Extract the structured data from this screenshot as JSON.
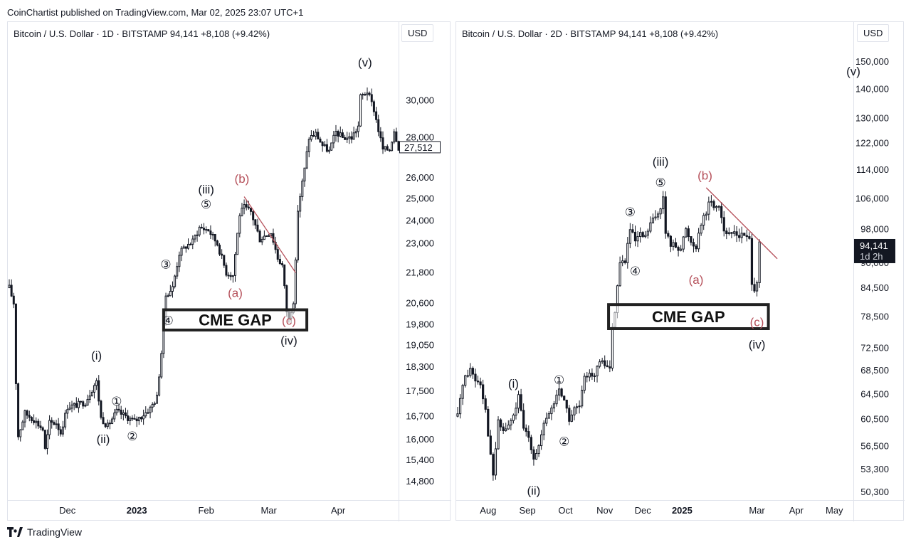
{
  "publish_line": "CoinChartist published on TradingView.com, Mar 02, 2025 23:07 UTC+1",
  "footer_brand": "TradingView",
  "colors": {
    "candle": "#131722",
    "annotation_red": "#b5505a",
    "trendline": "#b5505a",
    "gap_box": "#222222",
    "grid": "#e0e3eb"
  },
  "chart_data": [
    {
      "type": "candlestick",
      "header": "Bitcoin / U.S. Dollar · 1D · BITSTAMP  94,141  +8,108 (+9.42%)",
      "currency": "USD",
      "y_scale": "log",
      "ylim": [
        14300,
        33000
      ],
      "xlim": [
        "2022-11-05",
        "2023-04-28"
      ],
      "y_ticks": [
        "30,000",
        "28,000",
        "26,000",
        "25,000",
        "24,000",
        "23,000",
        "21,800",
        "20,600",
        "19,800",
        "19,050",
        "18,300",
        "17,500",
        "16,700",
        "16,000",
        "15,400",
        "14,800"
      ],
      "x_ticks": [
        {
          "label": "Dec",
          "date": "2022-12-01"
        },
        {
          "label": "2023",
          "date": "2023-01-01",
          "bold": true
        },
        {
          "label": "Feb",
          "date": "2023-02-01"
        },
        {
          "label": "Mar",
          "date": "2023-03-01"
        },
        {
          "label": "Apr",
          "date": "2023-04-01"
        }
      ],
      "last_price": "27,512",
      "last_price_value": 27512,
      "path": [
        [
          "2022-11-05",
          21200
        ],
        [
          "2022-11-07",
          20600
        ],
        [
          "2022-11-08",
          17800
        ],
        [
          "2022-11-09",
          16100
        ],
        [
          "2022-11-12",
          16800
        ],
        [
          "2022-11-16",
          16600
        ],
        [
          "2022-11-20",
          16300
        ],
        [
          "2022-11-21",
          15700
        ],
        [
          "2022-11-23",
          16500
        ],
        [
          "2022-11-26",
          16500
        ],
        [
          "2022-11-28",
          16200
        ],
        [
          "2022-12-01",
          17000
        ],
        [
          "2022-12-05",
          17050
        ],
        [
          "2022-12-09",
          17150
        ],
        [
          "2022-12-13",
          17700
        ],
        [
          "2022-12-14",
          17800
        ],
        [
          "2022-12-16",
          16650
        ],
        [
          "2022-12-19",
          16400
        ],
        [
          "2022-12-23",
          16850
        ],
        [
          "2022-12-27",
          16700
        ],
        [
          "2022-12-31",
          16550
        ],
        [
          "2023-01-03",
          16700
        ],
        [
          "2023-01-07",
          16950
        ],
        [
          "2023-01-10",
          17300
        ],
        [
          "2023-01-12",
          18800
        ],
        [
          "2023-01-14",
          20900
        ],
        [
          "2023-01-17",
          21200
        ],
        [
          "2023-01-20",
          22600
        ],
        [
          "2023-01-23",
          22900
        ],
        [
          "2023-01-26",
          23100
        ],
        [
          "2023-01-29",
          23700
        ],
        [
          "2023-02-02",
          23600
        ],
        [
          "2023-02-06",
          23000
        ],
        [
          "2023-02-10",
          21800
        ],
        [
          "2023-02-13",
          21700
        ],
        [
          "2023-02-16",
          24300
        ],
        [
          "2023-02-18",
          24600
        ],
        [
          "2023-02-21",
          24400
        ],
        [
          "2023-02-25",
          23200
        ],
        [
          "2023-02-28",
          23400
        ],
        [
          "2023-03-02",
          23500
        ],
        [
          "2023-03-05",
          22400
        ],
        [
          "2023-03-07",
          22100
        ],
        [
          "2023-03-09",
          20300
        ],
        [
          "2023-03-10",
          20000
        ],
        [
          "2023-03-12",
          20700
        ],
        [
          "2023-03-13",
          22200
        ],
        [
          "2023-03-14",
          24500
        ],
        [
          "2023-03-17",
          26400
        ],
        [
          "2023-03-19",
          28000
        ],
        [
          "2023-03-22",
          28200
        ],
        [
          "2023-03-25",
          27600
        ],
        [
          "2023-03-28",
          27300
        ],
        [
          "2023-03-31",
          28300
        ],
        [
          "2023-04-03",
          28000
        ],
        [
          "2023-04-07",
          28000
        ],
        [
          "2023-04-10",
          28600
        ],
        [
          "2023-04-11",
          30200
        ],
        [
          "2023-04-14",
          30500
        ],
        [
          "2023-04-17",
          29500
        ],
        [
          "2023-04-19",
          28400
        ],
        [
          "2023-04-21",
          27400
        ],
        [
          "2023-04-24",
          27400
        ],
        [
          "2023-04-26",
          28400
        ],
        [
          "2023-04-28",
          27512
        ]
      ],
      "trendline": [
        [
          "2023-02-18",
          25100
        ],
        [
          "2023-03-13",
          21800
        ]
      ],
      "gap_box": {
        "label": "CME GAP",
        "x0": "2023-01-13",
        "x1": "2023-03-18",
        "y0": 19600,
        "y1": 20350
      },
      "annotations": [
        {
          "text": "(v)",
          "x": "2023-04-13",
          "y": 32200,
          "color": "black"
        },
        {
          "text": "(iii)",
          "x": "2023-02-01",
          "y": 25450,
          "color": "black"
        },
        {
          "text": "⑤",
          "x": "2023-02-01",
          "y": 24750,
          "color": "black"
        },
        {
          "text": "(b)",
          "x": "2023-02-17",
          "y": 25950,
          "color": "red"
        },
        {
          "text": "③",
          "x": "2023-01-14",
          "y": 22150,
          "color": "black"
        },
        {
          "text": "(a)",
          "x": "2023-02-14",
          "y": 21000,
          "color": "red"
        },
        {
          "text": "④",
          "x": "2023-01-15",
          "y": 19950,
          "color": "black"
        },
        {
          "text": "(c)",
          "x": "2023-03-10",
          "y": 19950,
          "color": "red"
        },
        {
          "text": "(iv)",
          "x": "2023-03-10",
          "y": 19230,
          "color": "black"
        },
        {
          "text": "(i)",
          "x": "2022-12-14",
          "y": 18700,
          "color": "black"
        },
        {
          "text": "①",
          "x": "2022-12-23",
          "y": 17180,
          "color": "black"
        },
        {
          "text": "(ii)",
          "x": "2022-12-17",
          "y": 16020,
          "color": "black"
        },
        {
          "text": "②",
          "x": "2022-12-30",
          "y": 16100,
          "color": "black"
        }
      ]
    },
    {
      "type": "candlestick",
      "header": "Bitcoin / U.S. Dollar · 2D · BITSTAMP  94,141  +8,108 (+9.42%)",
      "currency": "USD",
      "y_scale": "log",
      "ylim": [
        49300,
        155000
      ],
      "xlim": [
        "2024-07-08",
        "2025-05-16"
      ],
      "y_ticks": [
        "150,000",
        "140,000",
        "130,000",
        "122,000",
        "114,000",
        "106,000",
        "98,000",
        "90,000",
        "84,500",
        "78,500",
        "72,500",
        "68,500",
        "64,500",
        "60,500",
        "56,500",
        "53,300",
        "50,300"
      ],
      "x_ticks": [
        {
          "label": "Aug",
          "date": "2024-08-01"
        },
        {
          "label": "Sep",
          "date": "2024-09-01"
        },
        {
          "label": "Oct",
          "date": "2024-10-01"
        },
        {
          "label": "Nov",
          "date": "2024-11-01"
        },
        {
          "label": "Dec",
          "date": "2024-12-01"
        },
        {
          "label": "2025",
          "date": "2025-01-01",
          "bold": true
        },
        {
          "label": "Mar",
          "date": "2025-03-01"
        },
        {
          "label": "Apr",
          "date": "2025-04-01"
        },
        {
          "label": "May",
          "date": "2025-05-01"
        }
      ],
      "last_price": "94,141",
      "last_price_value": 94141,
      "countdown": "1d 2h",
      "path": [
        [
          "2024-07-08",
          61000
        ],
        [
          "2024-07-12",
          66500
        ],
        [
          "2024-07-18",
          68800
        ],
        [
          "2024-07-22",
          67000
        ],
        [
          "2024-07-26",
          66500
        ],
        [
          "2024-07-30",
          62000
        ],
        [
          "2024-08-03",
          55000
        ],
        [
          "2024-08-05",
          52500
        ],
        [
          "2024-08-09",
          60000
        ],
        [
          "2024-08-13",
          58800
        ],
        [
          "2024-08-17",
          59500
        ],
        [
          "2024-08-21",
          61000
        ],
        [
          "2024-08-25",
          64000
        ],
        [
          "2024-08-29",
          59000
        ],
        [
          "2024-09-02",
          58000
        ],
        [
          "2024-09-06",
          55000
        ],
        [
          "2024-09-10",
          56500
        ],
        [
          "2024-09-14",
          59500
        ],
        [
          "2024-09-18",
          61500
        ],
        [
          "2024-09-22",
          63000
        ],
        [
          "2024-09-26",
          65500
        ],
        [
          "2024-09-30",
          63500
        ],
        [
          "2024-10-04",
          60500
        ],
        [
          "2024-10-08",
          62000
        ],
        [
          "2024-10-12",
          62500
        ],
        [
          "2024-10-16",
          67000
        ],
        [
          "2024-10-20",
          68500
        ],
        [
          "2024-10-24",
          67500
        ],
        [
          "2024-10-28",
          70000
        ],
        [
          "2024-11-01",
          69500
        ],
        [
          "2024-11-05",
          69000
        ],
        [
          "2024-11-07",
          76000
        ],
        [
          "2024-11-09",
          80000
        ],
        [
          "2024-11-13",
          90000
        ],
        [
          "2024-11-17",
          90500
        ],
        [
          "2024-11-21",
          98000
        ],
        [
          "2024-11-25",
          95000
        ],
        [
          "2024-11-29",
          96500
        ],
        [
          "2024-12-03",
          96000
        ],
        [
          "2024-12-07",
          99500
        ],
        [
          "2024-12-11",
          101000
        ],
        [
          "2024-12-15",
          104000
        ],
        [
          "2024-12-17",
          106000
        ],
        [
          "2024-12-19",
          97000
        ],
        [
          "2024-12-23",
          94500
        ],
        [
          "2024-12-27",
          94000
        ],
        [
          "2024-12-31",
          93500
        ],
        [
          "2025-01-04",
          98000
        ],
        [
          "2025-01-08",
          95000
        ],
        [
          "2025-01-12",
          94000
        ],
        [
          "2025-01-16",
          100000
        ],
        [
          "2025-01-20",
          102000
        ],
        [
          "2025-01-22",
          105500
        ],
        [
          "2025-01-26",
          104000
        ],
        [
          "2025-01-30",
          104500
        ],
        [
          "2025-02-03",
          98000
        ],
        [
          "2025-02-07",
          96500
        ],
        [
          "2025-02-11",
          97500
        ],
        [
          "2025-02-15",
          96500
        ],
        [
          "2025-02-19",
          96500
        ],
        [
          "2025-02-23",
          95500
        ],
        [
          "2025-02-25",
          86000
        ],
        [
          "2025-02-27",
          84500
        ],
        [
          "2025-03-01",
          86000
        ],
        [
          "2025-03-03",
          94141
        ]
      ],
      "trendline": [
        [
          "2025-01-20",
          109000
        ],
        [
          "2025-03-17",
          91000
        ]
      ],
      "gap_box": {
        "label": "CME GAP",
        "x0": "2024-11-04",
        "x1": "2025-03-10",
        "y0": 76200,
        "y1": 81000
      },
      "annotations": [
        {
          "text": "(v)",
          "x": "2025-05-16",
          "y": 146500,
          "color": "black"
        },
        {
          "text": "(iii)",
          "x": "2024-12-15",
          "y": 116500,
          "color": "black"
        },
        {
          "text": "⑤",
          "x": "2024-12-15",
          "y": 110500,
          "color": "black"
        },
        {
          "text": "(b)",
          "x": "2025-01-19",
          "y": 112500,
          "color": "red"
        },
        {
          "text": "③",
          "x": "2024-11-21",
          "y": 102500,
          "color": "black"
        },
        {
          "text": "④",
          "x": "2024-11-25",
          "y": 88200,
          "color": "black"
        },
        {
          "text": "(a)",
          "x": "2025-01-12",
          "y": 86300,
          "color": "red"
        },
        {
          "text": "(c)",
          "x": "2025-03-01",
          "y": 77500,
          "color": "red"
        },
        {
          "text": "(iv)",
          "x": "2025-03-01",
          "y": 73200,
          "color": "black"
        },
        {
          "text": "(i)",
          "x": "2024-08-21",
          "y": 66300,
          "color": "black"
        },
        {
          "text": "①",
          "x": "2024-09-26",
          "y": 66900,
          "color": "black"
        },
        {
          "text": "②",
          "x": "2024-09-30",
          "y": 57200,
          "color": "black"
        },
        {
          "text": "(ii)",
          "x": "2024-09-06",
          "y": 50500,
          "color": "black"
        }
      ]
    }
  ]
}
